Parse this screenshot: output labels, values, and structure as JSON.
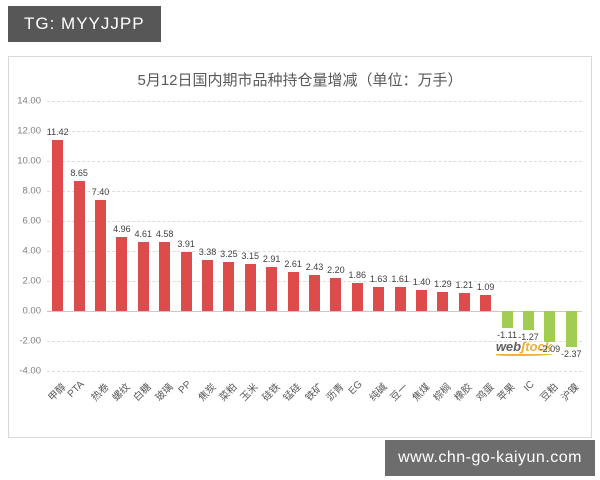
{
  "header": {
    "badge": "TG: MYYJJPP"
  },
  "footer": {
    "url": "www.chn-go-kaiyun.com"
  },
  "watermark": {
    "text_left": "web",
    "icon": "ʃ",
    "text_right": "tock"
  },
  "chart_data": {
    "type": "bar",
    "title": "5月12日国内期市品种持仓量增减（单位：万手）",
    "categories": [
      "甲醇",
      "PTA",
      "热卷",
      "螺纹",
      "白糖",
      "玻璃",
      "PP",
      "焦炭",
      "菜粕",
      "玉米",
      "硅铁",
      "锰硅",
      "铁矿",
      "沥青",
      "EG",
      "纯碱",
      "豆一",
      "焦煤",
      "棕榈",
      "橡胶",
      "鸡蛋",
      "苹果",
      "IC",
      "豆粕",
      "沪镍"
    ],
    "values": [
      11.42,
      8.65,
      7.4,
      4.96,
      4.61,
      4.58,
      3.91,
      3.38,
      3.25,
      3.15,
      2.91,
      2.61,
      2.43,
      2.2,
      1.86,
      1.63,
      1.61,
      1.4,
      1.29,
      1.21,
      1.09,
      -1.11,
      -1.27,
      -2.09,
      -2.37
    ],
    "xlabel": "",
    "ylabel": "",
    "ylim": [
      -4,
      14
    ],
    "ytick_step": 2,
    "yticks": [
      "14.00",
      "12.00",
      "10.00",
      "8.00",
      "6.00",
      "4.00",
      "2.00",
      "0.00",
      "-2.00",
      "-4.00"
    ],
    "grid": "horizontal-dashed",
    "legend": "none",
    "positive_color": "#dd4b4b",
    "negative_color": "#a0cd52"
  }
}
